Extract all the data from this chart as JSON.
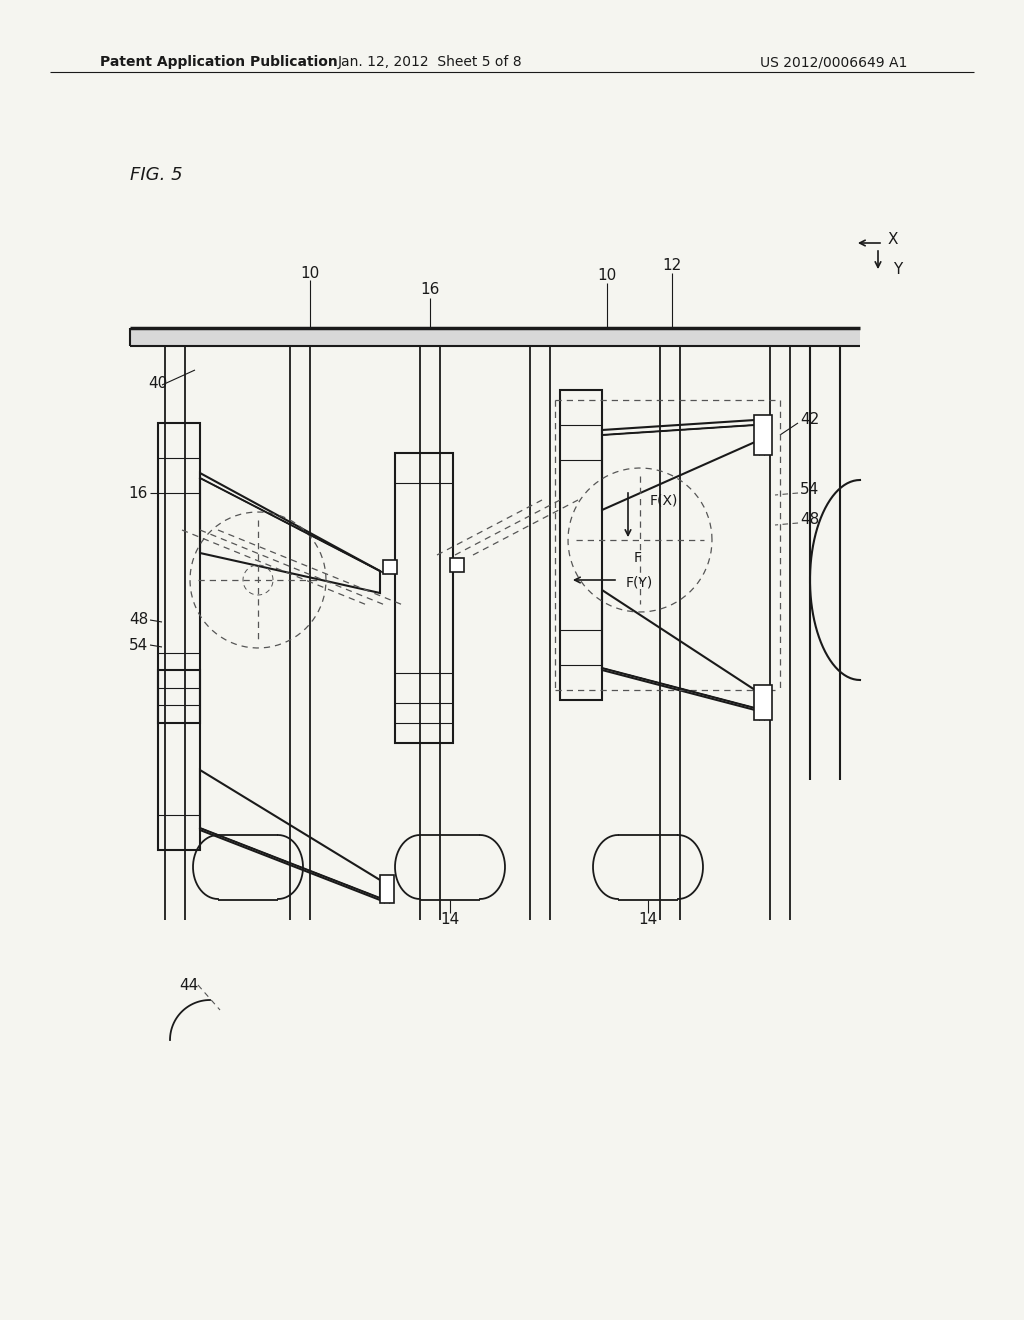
{
  "bg_color": "#f5f5f0",
  "line_color": "#1a1a1a",
  "dashed_color": "#555555",
  "header_text1": "Patent Application Publication",
  "header_text2": "Jan. 12, 2012  Sheet 5 of 8",
  "header_text3": "US 2012/0006649 A1",
  "fig_label": "FIG. 5"
}
